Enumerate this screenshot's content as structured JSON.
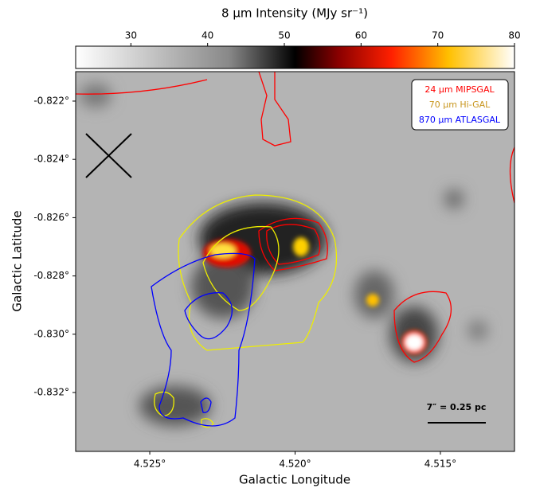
{
  "chart_data": {
    "type": "image",
    "colorbar": {
      "label": "8 μm Intensity (MJy sr⁻¹)",
      "lim": [
        22.8,
        80
      ],
      "ticks": [
        30,
        40,
        50,
        60,
        70,
        80
      ]
    },
    "xlabel": "Galactic Longitude",
    "ylabel": "Galactic Latitude",
    "xlim": [
      4.52755,
      4.51245
    ],
    "ylim": [
      -0.83402,
      -0.82099
    ],
    "xticks": [
      {
        "value": 4.525,
        "label": "4.525°"
      },
      {
        "value": 4.52,
        "label": "4.520°"
      },
      {
        "value": 4.515,
        "label": "4.515°"
      }
    ],
    "yticks": [
      {
        "value": -0.822,
        "label": "-0.822°"
      },
      {
        "value": -0.824,
        "label": "-0.824°"
      },
      {
        "value": -0.826,
        "label": "-0.826°"
      },
      {
        "value": -0.828,
        "label": "-0.828°"
      },
      {
        "value": -0.83,
        "label": "-0.830°"
      },
      {
        "value": -0.832,
        "label": "-0.832°"
      }
    ],
    "legend": [
      {
        "name": "24 μm MIPSGAL",
        "color": "#ff0000"
      },
      {
        "name": "70 μm Hi-GAL",
        "color": "#c8961e"
      },
      {
        "name": "870 μm ATLASGAL",
        "color": "#0000ff"
      }
    ],
    "scale_bar": "7″ = 0.25 pc"
  }
}
